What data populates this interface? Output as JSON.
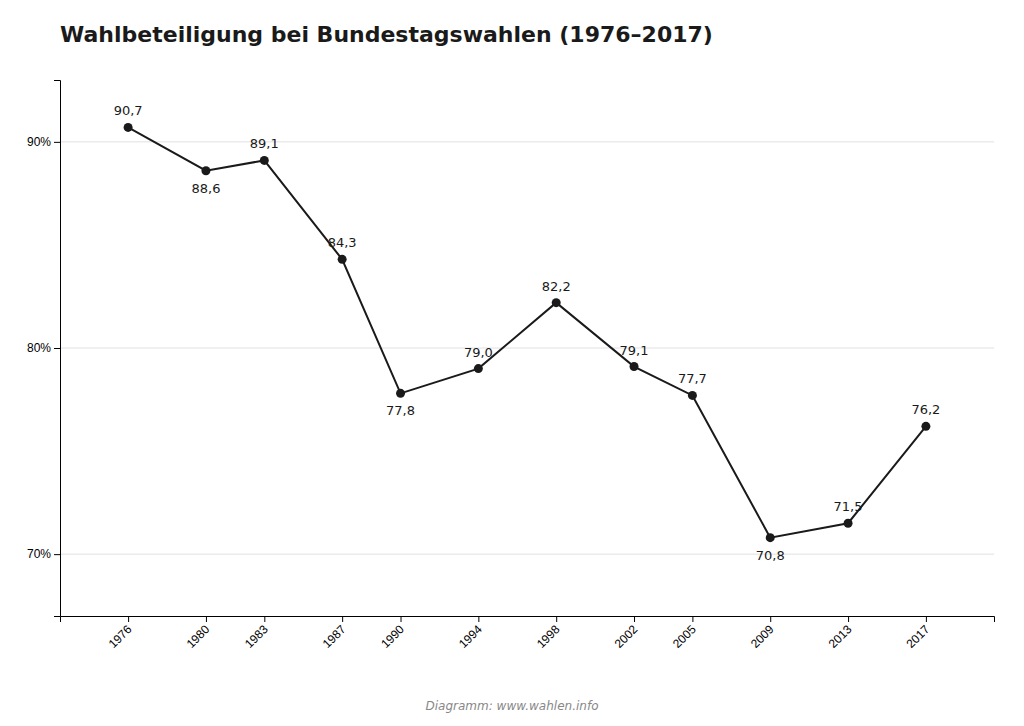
{
  "chart_data": {
    "type": "line",
    "title": "Wahlbeteiligung bei Bundestagswahlen (1976–2017)",
    "footnote": "Diagramm: www.wahlen.info",
    "x": [
      1976,
      1980,
      1983,
      1987,
      1990,
      1994,
      1998,
      2002,
      2005,
      2009,
      2013,
      2017
    ],
    "values": [
      90.7,
      88.6,
      89.1,
      84.3,
      77.8,
      79.0,
      82.2,
      79.1,
      77.7,
      70.8,
      71.5,
      76.2
    ],
    "value_labels": [
      "90,7",
      "88,6",
      "89,1",
      "84,3",
      "77,8",
      "79,0",
      "82,2",
      "79,1",
      "77,7",
      "70,8",
      "71,5",
      "76,2"
    ],
    "data_labels": true,
    "color": "#1a1a1a",
    "marker": "circle",
    "xlim": [
      1972.5,
      2020.5
    ],
    "xticks": [
      1976,
      1980,
      1983,
      1987,
      1990,
      1994,
      1998,
      2002,
      2005,
      2009,
      2013,
      2017
    ],
    "ylim": [
      67,
      93
    ],
    "yticks": [
      {
        "value": 70,
        "label": "70%"
      },
      {
        "value": 80,
        "label": "80%"
      },
      {
        "value": 90,
        "label": "90%"
      }
    ],
    "grid": true
  }
}
